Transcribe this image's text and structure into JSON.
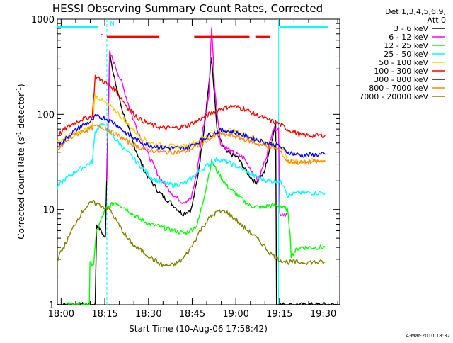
{
  "chart_data": {
    "type": "line",
    "title": "HESSI Observing Summary Count Rates, Corrected",
    "xlabel": "Start Time (10-Aug-06 17:58:42)",
    "ylabel": "Corrected Count Rate (s⁻¹ detector⁻¹)",
    "ylabel_main": "Corrected Count Rate (s",
    "ylabel_sup1": "-1",
    "ylabel_mid": " detector",
    "ylabel_sup2": "-1",
    "ylabel_end": ")",
    "x_units": "minutes after 17:58:42",
    "xlim": [
      0,
      97
    ],
    "ylim": [
      1,
      1000
    ],
    "y_scale": "log",
    "x_ticks": [
      {
        "x": 1.3,
        "label": "18:00"
      },
      {
        "x": 16.3,
        "label": "18:15"
      },
      {
        "x": 31.3,
        "label": "18:30"
      },
      {
        "x": 46.3,
        "label": "18:45"
      },
      {
        "x": 61.3,
        "label": "19:00"
      },
      {
        "x": 76.3,
        "label": "19:15"
      },
      {
        "x": 91.3,
        "label": "19:30"
      }
    ],
    "y_ticks": [
      {
        "y": 1,
        "label": "1"
      },
      {
        "y": 10,
        "label": "10"
      },
      {
        "y": 100,
        "label": "100"
      },
      {
        "y": 1000,
        "label": "1000"
      }
    ],
    "legend_header": [
      "Det 1,3,4,5,6,9,",
      "Att 0"
    ],
    "legend_position": "right",
    "series": [
      {
        "name": "3 - 6 keV",
        "color": "#000000",
        "points": [
          [
            0,
            1
          ],
          [
            13,
            1
          ],
          [
            13.5,
            7
          ],
          [
            16.5,
            5
          ],
          [
            17,
            25
          ],
          [
            18,
            480
          ],
          [
            19,
            280
          ],
          [
            22,
            120
          ],
          [
            26,
            50
          ],
          [
            30,
            25
          ],
          [
            35,
            15
          ],
          [
            40,
            11
          ],
          [
            43,
            9
          ],
          [
            46,
            10
          ],
          [
            48,
            20
          ],
          [
            50,
            55
          ],
          [
            53,
            390
          ],
          [
            55,
            60
          ],
          [
            58,
            40
          ],
          [
            62,
            35
          ],
          [
            65,
            25
          ],
          [
            68,
            19
          ],
          [
            71,
            24
          ],
          [
            74,
            60
          ],
          [
            75,
            80
          ],
          [
            75.3,
            1
          ],
          [
            97,
            1
          ]
        ]
      },
      {
        "name": "6 - 12 keV",
        "color": "#ff00ff",
        "points": [
          [
            17,
            20
          ],
          [
            18,
            440
          ],
          [
            19,
            380
          ],
          [
            22,
            220
          ],
          [
            26,
            90
          ],
          [
            30,
            45
          ],
          [
            35,
            22
          ],
          [
            40,
            14
          ],
          [
            43,
            12
          ],
          [
            46,
            13
          ],
          [
            48,
            25
          ],
          [
            50,
            70
          ],
          [
            52,
            150
          ],
          [
            53,
            850
          ],
          [
            54,
            200
          ],
          [
            56,
            50
          ],
          [
            60,
            40
          ],
          [
            64,
            35
          ],
          [
            67,
            25
          ],
          [
            69,
            20
          ],
          [
            72,
            38
          ],
          [
            74,
            70
          ],
          [
            76,
            72
          ],
          [
            76.4,
            9
          ],
          [
            79,
            9
          ]
        ]
      },
      {
        "name": "12 - 25 keV",
        "color": "#00ff00",
        "points": [
          [
            3,
            1
          ],
          [
            11,
            1
          ],
          [
            11.2,
            2.7
          ],
          [
            12.5,
            2.7
          ],
          [
            13.5,
            6
          ],
          [
            16.5,
            10
          ],
          [
            20,
            12
          ],
          [
            24,
            10
          ],
          [
            28,
            8
          ],
          [
            32,
            7
          ],
          [
            36,
            6.5
          ],
          [
            40,
            6
          ],
          [
            44,
            5.6
          ],
          [
            48,
            6.8
          ],
          [
            50,
            12
          ],
          [
            53,
            32
          ],
          [
            55,
            25
          ],
          [
            58,
            18
          ],
          [
            62,
            14
          ],
          [
            66,
            11
          ],
          [
            70,
            10.5
          ],
          [
            73,
            11
          ],
          [
            76,
            11
          ],
          [
            79,
            10
          ],
          [
            80,
            5.5
          ],
          [
            80.3,
            3.3
          ],
          [
            83,
            4
          ],
          [
            88,
            4
          ],
          [
            92,
            4
          ]
        ]
      },
      {
        "name": "25 - 50 keV",
        "color": "#00ffff",
        "points": [
          [
            0,
            17
          ],
          [
            2,
            20
          ],
          [
            6,
            25
          ],
          [
            9,
            28
          ],
          [
            12,
            32
          ],
          [
            13,
            65
          ],
          [
            15,
            80
          ],
          [
            17,
            70
          ],
          [
            20,
            55
          ],
          [
            24,
            40
          ],
          [
            28,
            30
          ],
          [
            32,
            22
          ],
          [
            36,
            19
          ],
          [
            40,
            18
          ],
          [
            44,
            19
          ],
          [
            48,
            24
          ],
          [
            52,
            30
          ],
          [
            55,
            34
          ],
          [
            58,
            32
          ],
          [
            62,
            28
          ],
          [
            66,
            24
          ],
          [
            70,
            21
          ],
          [
            73,
            20
          ],
          [
            76,
            20
          ],
          [
            78,
            18
          ],
          [
            79,
            14
          ],
          [
            83,
            15
          ],
          [
            88,
            15
          ],
          [
            92,
            15
          ]
        ]
      },
      {
        "name": "50 - 100 keV",
        "color": "#ffcc00",
        "points": [
          [
            0,
            50
          ],
          [
            4,
            60
          ],
          [
            8,
            65
          ],
          [
            12,
            75
          ],
          [
            13,
            160
          ],
          [
            16,
            135
          ],
          [
            20,
            110
          ],
          [
            24,
            80
          ],
          [
            28,
            60
          ],
          [
            32,
            50
          ],
          [
            36,
            47
          ],
          [
            40,
            46
          ],
          [
            44,
            46
          ],
          [
            48,
            52
          ],
          [
            52,
            62
          ],
          [
            56,
            70
          ],
          [
            60,
            68
          ],
          [
            64,
            62
          ],
          [
            68,
            55
          ],
          [
            72,
            50
          ],
          [
            76,
            48
          ],
          [
            78,
            42
          ],
          [
            79,
            32
          ],
          [
            84,
            32
          ],
          [
            92,
            33
          ]
        ]
      },
      {
        "name": "100 - 300 keV",
        "color": "#ff0000",
        "points": [
          [
            0,
            60
          ],
          [
            4,
            75
          ],
          [
            8,
            88
          ],
          [
            12,
            95
          ],
          [
            13,
            250
          ],
          [
            16,
            220
          ],
          [
            20,
            180
          ],
          [
            24,
            120
          ],
          [
            28,
            90
          ],
          [
            32,
            78
          ],
          [
            36,
            72
          ],
          [
            40,
            72
          ],
          [
            44,
            75
          ],
          [
            48,
            85
          ],
          [
            52,
            100
          ],
          [
            56,
            115
          ],
          [
            60,
            122
          ],
          [
            64,
            115
          ],
          [
            68,
            100
          ],
          [
            72,
            88
          ],
          [
            76,
            80
          ],
          [
            79,
            70
          ],
          [
            84,
            60
          ],
          [
            92,
            60
          ]
        ]
      },
      {
        "name": "300 - 800 keV",
        "color": "#0000ff",
        "points": [
          [
            0,
            45
          ],
          [
            4,
            60
          ],
          [
            8,
            75
          ],
          [
            12,
            85
          ],
          [
            13,
            95
          ],
          [
            16,
            92
          ],
          [
            20,
            80
          ],
          [
            24,
            62
          ],
          [
            28,
            52
          ],
          [
            32,
            47
          ],
          [
            36,
            45
          ],
          [
            40,
            44
          ],
          [
            44,
            44
          ],
          [
            48,
            50
          ],
          [
            52,
            60
          ],
          [
            56,
            68
          ],
          [
            60,
            66
          ],
          [
            64,
            60
          ],
          [
            68,
            55
          ],
          [
            72,
            50
          ],
          [
            76,
            47
          ],
          [
            79,
            40
          ],
          [
            84,
            37
          ],
          [
            92,
            38
          ]
        ]
      },
      {
        "name": "800 - 7000 keV",
        "color": "#ff8800",
        "points": [
          [
            0,
            42
          ],
          [
            4,
            55
          ],
          [
            8,
            65
          ],
          [
            12,
            72
          ],
          [
            13,
            75
          ],
          [
            16,
            72
          ],
          [
            20,
            62
          ],
          [
            24,
            52
          ],
          [
            28,
            45
          ],
          [
            32,
            42
          ],
          [
            36,
            40
          ],
          [
            40,
            40
          ],
          [
            44,
            41
          ],
          [
            48,
            46
          ],
          [
            52,
            55
          ],
          [
            56,
            62
          ],
          [
            60,
            60
          ],
          [
            64,
            55
          ],
          [
            68,
            50
          ],
          [
            72,
            46
          ],
          [
            76,
            43
          ],
          [
            79,
            32
          ],
          [
            84,
            31
          ],
          [
            92,
            32
          ]
        ]
      },
      {
        "name": "7000 - 20000 keV",
        "color": "#808000",
        "points": [
          [
            0,
            3
          ],
          [
            3,
            4.5
          ],
          [
            6,
            7
          ],
          [
            9,
            10
          ],
          [
            12,
            12
          ],
          [
            15,
            11
          ],
          [
            18,
            10
          ],
          [
            21,
            7
          ],
          [
            24,
            5
          ],
          [
            27,
            4
          ],
          [
            30,
            3.5
          ],
          [
            33,
            3
          ],
          [
            36,
            2.6
          ],
          [
            40,
            2.6
          ],
          [
            43,
            3
          ],
          [
            46,
            4
          ],
          [
            49,
            6
          ],
          [
            52,
            8
          ],
          [
            55,
            9.5
          ],
          [
            58,
            9.5
          ],
          [
            61,
            8
          ],
          [
            64,
            6.5
          ],
          [
            67,
            5.5
          ],
          [
            70,
            4.5
          ],
          [
            73,
            3.5
          ],
          [
            76,
            3
          ],
          [
            79,
            2.8
          ],
          [
            83,
            2.8
          ],
          [
            88,
            2.8
          ],
          [
            92,
            2.8
          ]
        ]
      }
    ],
    "flag_bars": [
      {
        "name": "attenuator",
        "color": "#00ffff",
        "y": 830,
        "segments": [
          [
            0,
            14
          ],
          [
            76.6,
            93
          ]
        ]
      },
      {
        "name": "flare",
        "color": "#ff0000",
        "y": 650,
        "segments": [
          [
            17,
            35
          ],
          [
            47,
            66
          ],
          [
            68,
            73
          ]
        ]
      }
    ],
    "flag_labels": [
      {
        "text": "F",
        "color": "#ff0000",
        "x": 15.3,
        "y": 680
      },
      {
        "text": "N",
        "color": "#00ffff",
        "x": 18.8,
        "y": 900
      }
    ],
    "vertical_lines": [
      {
        "name": "night-start",
        "color": "#00ffff",
        "style": "dashed",
        "x": 17
      },
      {
        "name": "night-end",
        "color": "#00ffff",
        "style": "dashed",
        "x": 93
      },
      {
        "name": "saa-solid",
        "color": "#00ffff",
        "style": "solid",
        "x": 76
      }
    ],
    "footnote": "4-Mar-2010 18:32"
  }
}
